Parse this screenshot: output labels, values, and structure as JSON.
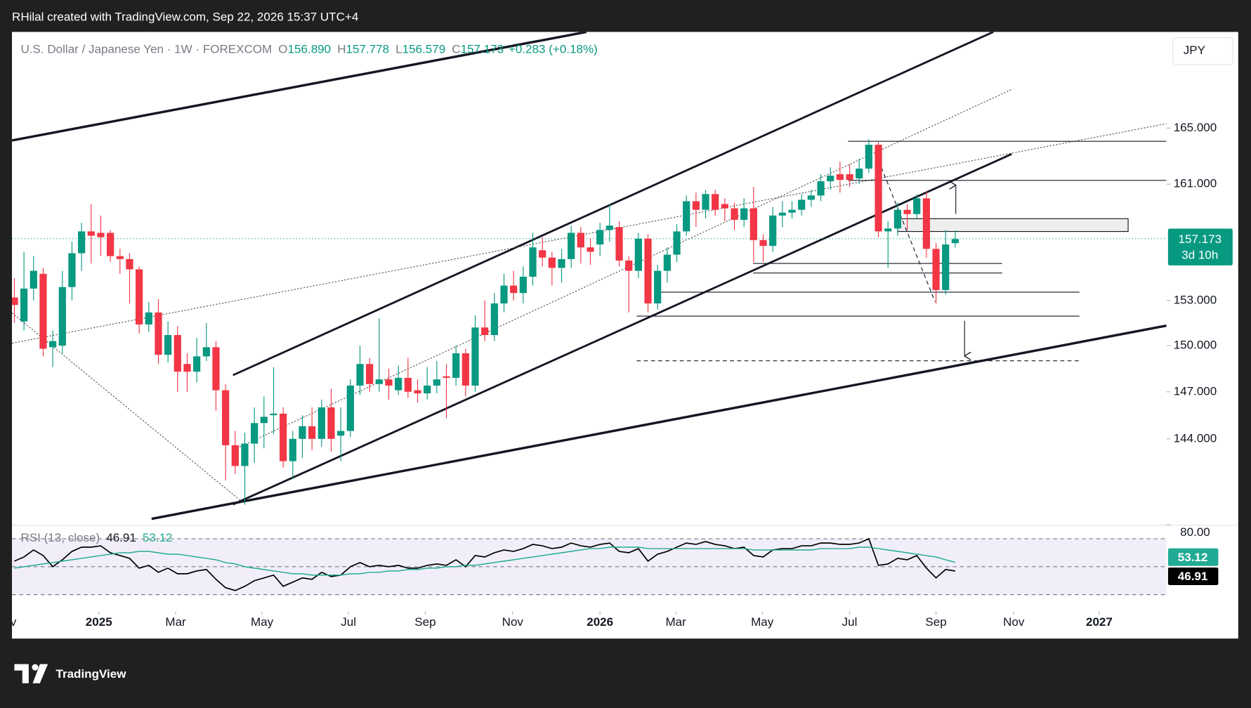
{
  "top_bar": {
    "text": "RHilal created with TradingView.com, Sep 22, 2026 15:37 UTC+4"
  },
  "header": {
    "symbol": "U.S. Dollar / Japanese Yen · 1W · FOREXCOM",
    "ohlc": [
      {
        "key": "O",
        "value": "156.890"
      },
      {
        "key": "H",
        "value": "157.778"
      },
      {
        "key": "L",
        "value": "156.579"
      },
      {
        "key": "C",
        "value": "157.173"
      }
    ],
    "change": "+0.283 (+0.18%)",
    "currency": "JPY"
  },
  "countdown": "3d 10h",
  "logo": "TradingView",
  "chart_data": {
    "type": "candlestick",
    "log_scale": true,
    "up_color": "#089981",
    "down_color": "#f23645",
    "open": [
      153.2,
      151.6,
      153.8,
      154.8,
      149.9,
      150.0,
      153.9,
      156.2,
      157.7,
      157.6,
      157.6,
      156.0,
      155.8,
      155.1,
      151.4,
      152.2,
      149.4,
      150.7,
      148.8,
      148.3,
      149.3,
      149.9,
      147.1,
      143.6,
      142.3,
      143.7,
      145.0,
      145.5,
      145.6,
      142.6,
      144.0,
      144.8,
      144.0,
      146.0,
      144.2,
      144.5,
      147.4,
      148.8,
      147.5,
      147.8,
      147.1,
      147.9,
      147.1,
      146.9,
      147.4,
      148.0,
      147.9,
      149.5,
      147.4,
      151.2,
      150.7,
      152.8,
      154.0,
      153.5,
      154.6,
      156.4,
      155.9,
      155.2,
      155.8,
      157.6,
      156.6,
      156.8,
      157.8,
      158.0,
      155.7,
      155.0,
      157.2,
      152.8,
      155.0,
      156.1,
      157.7,
      159.8,
      159.2,
      160.3,
      159.6,
      159.3,
      158.5,
      159.3,
      157.1,
      156.7,
      158.8,
      159.0,
      159.2,
      159.9,
      160.2,
      161.2,
      161.7,
      161.7,
      161.4,
      162.1,
      163.8,
      157.7,
      157.9,
      159.2,
      158.9,
      160.0,
      156.5,
      153.7,
      156.89
    ],
    "high": [
      154.5,
      156.3,
      156.0,
      155.2,
      151.0,
      155.0,
      157.0,
      158.3,
      159.6,
      158.8,
      157.8,
      156.5,
      156.2,
      155.3,
      152.9,
      153.1,
      151.6,
      151.3,
      149.5,
      150.5,
      151.5,
      150.3,
      147.5,
      144.5,
      144.4,
      146.0,
      146.7,
      148.6,
      146.0,
      144.5,
      145.5,
      146.0,
      146.5,
      147.2,
      146.0,
      147.8,
      150.0,
      149.2,
      151.8,
      148.5,
      148.7,
      149.2,
      147.8,
      148.6,
      149.0,
      148.8,
      150.0,
      149.8,
      152.0,
      153.0,
      153.5,
      154.8,
      155.0,
      155.3,
      157.6,
      157.3,
      156.3,
      156.5,
      158.1,
      158.0,
      157.2,
      158.3,
      159.6,
      158.4,
      156.0,
      157.6,
      157.5,
      155.4,
      156.6,
      158.2,
      160.2,
      160.4,
      160.6,
      160.6,
      160.0,
      159.7,
      160.0,
      160.8,
      157.5,
      159.4,
      159.8,
      159.8,
      160.3,
      160.6,
      161.7,
      162.2,
      162.6,
      162.4,
      162.8,
      164.2,
      164.0,
      158.4,
      159.7,
      159.6,
      160.3,
      160.5,
      156.9,
      157.8,
      157.778
    ],
    "low": [
      151.5,
      151.0,
      153.0,
      149.3,
      148.6,
      149.5,
      153.0,
      155.0,
      155.5,
      156.0,
      155.6,
      154.8,
      152.8,
      150.8,
      150.9,
      148.8,
      148.9,
      147.0,
      147.0,
      147.6,
      149.0,
      145.8,
      141.4,
      141.8,
      139.9,
      142.5,
      143.4,
      144.3,
      142.2,
      141.5,
      142.8,
      143.3,
      143.5,
      143.2,
      142.6,
      144.1,
      146.8,
      147.0,
      147.0,
      146.5,
      146.8,
      146.6,
      146.3,
      146.5,
      146.9,
      145.3,
      147.4,
      146.7,
      147.0,
      150.3,
      150.3,
      152.2,
      153.0,
      152.8,
      154.0,
      155.3,
      154.0,
      154.2,
      155.2,
      155.5,
      155.4,
      156.0,
      157.0,
      155.3,
      152.2,
      154.5,
      152.2,
      152.4,
      154.2,
      155.6,
      157.4,
      158.0,
      158.6,
      158.8,
      158.4,
      157.8,
      158.0,
      155.6,
      155.6,
      156.3,
      158.0,
      158.6,
      158.8,
      159.4,
      159.8,
      160.6,
      160.4,
      160.8,
      161.0,
      161.8,
      157.3,
      155.2,
      157.4,
      157.8,
      158.6,
      155.9,
      152.8,
      153.4,
      156.579
    ],
    "close": [
      152.7,
      153.8,
      155.0,
      149.8,
      150.3,
      153.9,
      156.2,
      157.7,
      157.4,
      157.3,
      156.0,
      155.8,
      155.1,
      151.4,
      152.2,
      149.4,
      150.7,
      148.3,
      148.3,
      149.3,
      149.9,
      147.1,
      143.6,
      142.3,
      143.7,
      145.0,
      145.4,
      145.6,
      142.6,
      144.0,
      144.8,
      144.0,
      146.0,
      144.0,
      144.5,
      147.4,
      148.8,
      147.5,
      147.8,
      147.4,
      147.9,
      147.0,
      146.9,
      147.4,
      147.8,
      147.9,
      149.5,
      147.4,
      151.2,
      150.7,
      152.8,
      154.0,
      153.5,
      154.6,
      156.6,
      155.9,
      155.2,
      155.8,
      157.6,
      156.6,
      156.3,
      157.8,
      158.1,
      155.7,
      155.0,
      157.2,
      152.8,
      155.0,
      156.1,
      157.7,
      159.8,
      159.2,
      160.3,
      159.2,
      159.3,
      158.5,
      159.3,
      157.1,
      156.7,
      158.8,
      159.0,
      159.2,
      159.9,
      160.2,
      161.2,
      161.6,
      161.3,
      161.3,
      162.1,
      163.8,
      157.7,
      157.9,
      159.2,
      158.9,
      160.0,
      156.5,
      153.7,
      156.8,
      157.173
    ],
    "ylim": [
      138.8,
      172.1
    ],
    "yticks": [
      {
        "value": 165,
        "label": "165.000"
      },
      {
        "value": 161,
        "label": "161.000"
      },
      {
        "value": 153,
        "label": "153.000"
      },
      {
        "value": 150,
        "label": "150.000"
      },
      {
        "value": 147,
        "label": "147.000"
      },
      {
        "value": 144,
        "label": "144.000"
      }
    ],
    "xlim": [
      -0.25,
      120
    ],
    "xticks": [
      {
        "value": -0.9,
        "label": "Nov"
      },
      {
        "value": 8.8,
        "label": "2025"
      },
      {
        "value": 16.8,
        "label": "Mar"
      },
      {
        "value": 25.8,
        "label": "May"
      },
      {
        "value": 34.8,
        "label": "Jul"
      },
      {
        "value": 42.8,
        "label": "Sep"
      },
      {
        "value": 51.9,
        "label": "Nov"
      },
      {
        "value": 61.0,
        "label": "2026"
      },
      {
        "value": 68.9,
        "label": "Mar"
      },
      {
        "value": 77.9,
        "label": "May"
      },
      {
        "value": 87.0,
        "label": "Jul"
      },
      {
        "value": 96.0,
        "label": "Sep"
      },
      {
        "value": 104.1,
        "label": "Nov"
      },
      {
        "value": 113.0,
        "label": "2027"
      }
    ],
    "rsi": {
      "name": "RSI (13, close)",
      "ylim": [
        20,
        80
      ],
      "yticks": [
        {
          "value": 80,
          "label": "80.00"
        }
      ],
      "bands": [
        70,
        50,
        30
      ],
      "series": [
        {
          "color": "#000000",
          "values": [
            54,
            57,
            62,
            58,
            50,
            55,
            61,
            64,
            64,
            65,
            60,
            58,
            56,
            49,
            51,
            46,
            49,
            45,
            45,
            47,
            48,
            41,
            35,
            33,
            36,
            40,
            42,
            44,
            36,
            39,
            42,
            41,
            46,
            43,
            44,
            50,
            53,
            50,
            51,
            50,
            51,
            49,
            49,
            51,
            52,
            51,
            55,
            50,
            58,
            57,
            60,
            62,
            61,
            63,
            66,
            65,
            63,
            64,
            67,
            65,
            64,
            66,
            67,
            61,
            60,
            63,
            54,
            59,
            61,
            64,
            67,
            66,
            68,
            66,
            65,
            63,
            64,
            58,
            57,
            62,
            63,
            63,
            65,
            65,
            67,
            67,
            66,
            66,
            67,
            70,
            51,
            52,
            56,
            55,
            58,
            49,
            42,
            48,
            46.91
          ]
        },
        {
          "color": "#22ab94",
          "values": [
            49,
            50,
            51,
            52,
            53,
            54,
            55,
            56,
            57,
            58,
            59,
            60,
            60,
            61,
            61,
            60,
            59,
            59,
            58,
            57,
            56,
            55,
            53,
            52,
            50,
            49,
            48,
            47,
            46,
            45,
            45,
            44,
            44,
            44,
            44,
            45,
            45,
            46,
            46,
            47,
            47,
            48,
            48,
            49,
            49,
            50,
            50,
            51,
            51,
            52,
            53,
            54,
            55,
            56,
            57,
            58,
            59,
            60,
            61,
            62,
            63,
            63,
            64,
            64,
            64,
            64,
            63,
            63,
            63,
            63,
            63,
            63,
            63,
            63,
            63,
            63,
            63,
            62,
            62,
            62,
            62,
            62,
            62,
            62,
            63,
            63,
            63,
            63,
            64,
            64,
            63,
            62,
            61,
            60,
            59,
            58,
            57,
            55,
            53.12
          ]
        }
      ]
    }
  }
}
